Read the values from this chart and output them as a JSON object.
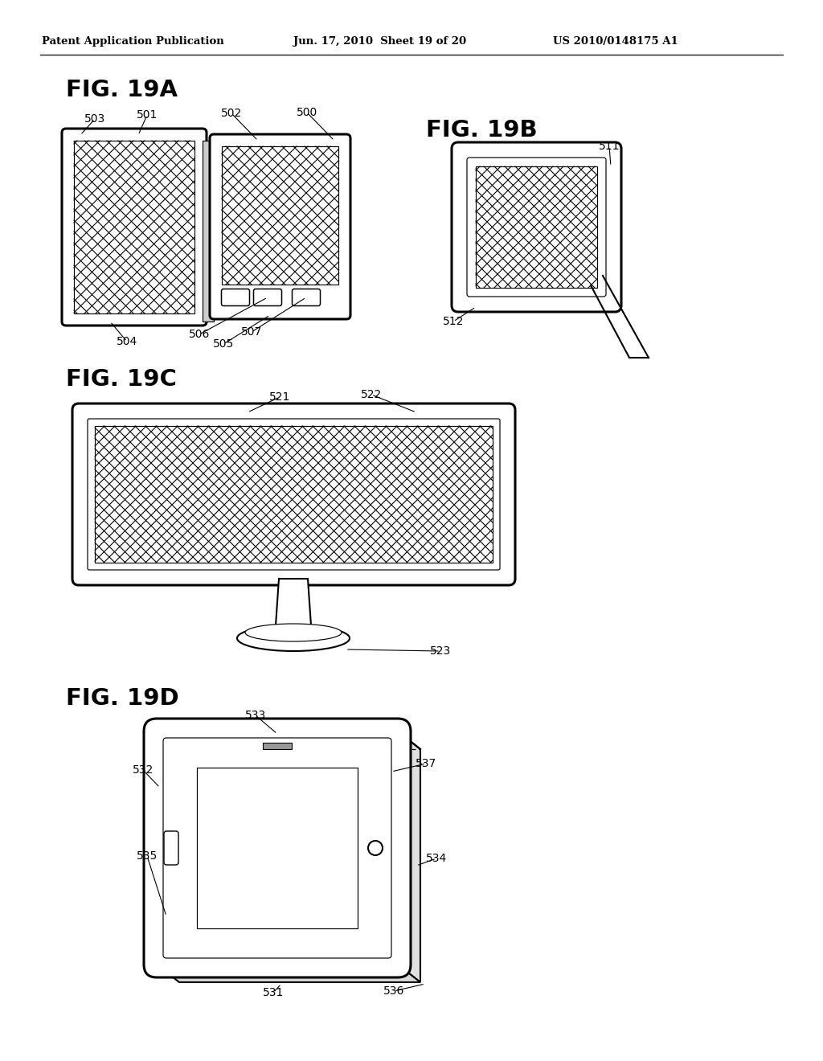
{
  "header_left": "Patent Application Publication",
  "header_mid": "Jun. 17, 2010  Sheet 19 of 20",
  "header_right": "US 2010/0148175 A1",
  "fig19a_label": "FIG. 19A",
  "fig19b_label": "FIG. 19B",
  "fig19c_label": "FIG. 19C",
  "fig19d_label": "FIG. 19D",
  "bg_color": "#ffffff",
  "line_color": "#000000"
}
